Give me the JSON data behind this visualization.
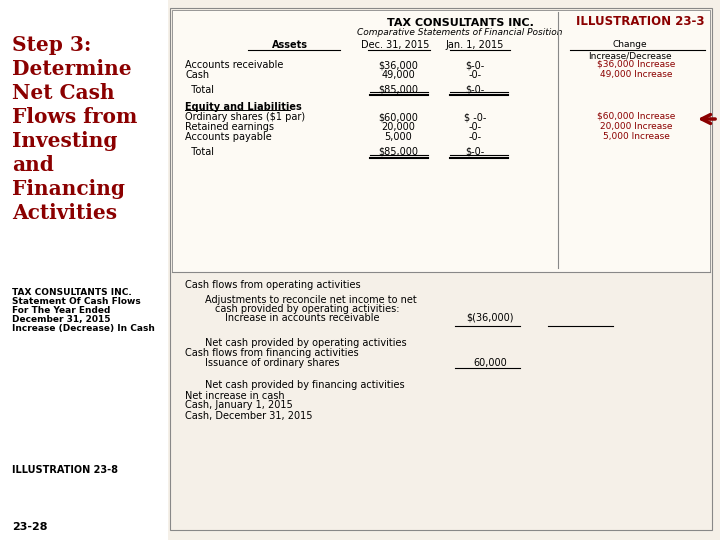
{
  "bg_color": "#f5f0e8",
  "left_panel_bg": "#ffffff",
  "title_color": "#8B0000",
  "body_color": "#000000",
  "dark_red": "#8B0000",
  "left_title": "Step 3:\nDetermine\nNet Cash\nFlows from\nInvesting\nand\nFinancing\nActivities",
  "left_subtitle1": "TAX CONSULTANTS INC.",
  "left_subtitle2": "Statement Of Cash Flows",
  "left_subtitle3": "For The Year Ended",
  "left_subtitle4": "December 31, 2015",
  "left_subtitle5": "Increase (Decrease) In Cash",
  "illus_label": "ILLUSTRATION 23-8",
  "bottom_label": "23-28",
  "table1_title": "TAX CONSULTANTS INC.",
  "table1_subtitle": "Comparative Statements of Financial Position",
  "illus_top": "ILLUSTRATION 23-3",
  "col_headers": [
    "Assets",
    "Dec. 31, 2015",
    "Jan. 1, 2015",
    "Change\nIncrease/Decrease"
  ],
  "assets_rows": [
    [
      "Accounts receivable",
      "$36,000",
      "$-0-",
      "$36,000 Increase"
    ],
    [
      "Cash",
      "49,000",
      "-0-",
      "49,000 Increase"
    ],
    [
      "  Total",
      "$85,000",
      "$-0-",
      ""
    ]
  ],
  "eq_header": "Equity and Liabilities",
  "eq_rows": [
    [
      "Ordinary shares ($1 par)",
      "$60,000",
      "$ -0-",
      "$60,000 Increase"
    ],
    [
      "Retained earnings",
      "20,000",
      "-0-",
      "20,000 Increase"
    ],
    [
      "Accounts payable",
      "5,000",
      "-0-",
      "5,000 Increase"
    ],
    [
      "  Total",
      "$85,000",
      "$-0-",
      ""
    ]
  ],
  "cf_section": [
    {
      "indent": 0,
      "text": "Cash flows from operating activities",
      "value1": "",
      "value2": ""
    },
    {
      "indent": 2,
      "text": "Adjustments to reconcile net income to net",
      "value1": "",
      "value2": ""
    },
    {
      "indent": 3,
      "text": "cash provided by operating activities:",
      "value1": "",
      "value2": ""
    },
    {
      "indent": 4,
      "text": "Increase in accounts receivable",
      "value1": "$(36,000)",
      "value2": ""
    },
    {
      "indent": 0,
      "text": "",
      "value1": "________",
      "value2": "________"
    },
    {
      "indent": 2,
      "text": "Net cash provided by operating activities",
      "value1": "",
      "value2": ""
    },
    {
      "indent": 0,
      "text": "Cash flows from financing activities",
      "value1": "",
      "value2": ""
    },
    {
      "indent": 2,
      "text": "Issuance of ordinary shares",
      "value1": "60,000",
      "value2": ""
    },
    {
      "indent": 0,
      "text": "",
      "value1": "________",
      "value2": ""
    },
    {
      "indent": 2,
      "text": "Net cash provided by financing activities",
      "value1": "",
      "value2": ""
    },
    {
      "indent": 0,
      "text": "Net increase in cash",
      "value1": "",
      "value2": ""
    },
    {
      "indent": 0,
      "text": "Cash, January 1, 2015",
      "value1": "",
      "value2": ""
    },
    {
      "indent": 0,
      "text": "Cash, December 31, 2015",
      "value1": "",
      "value2": ""
    }
  ]
}
